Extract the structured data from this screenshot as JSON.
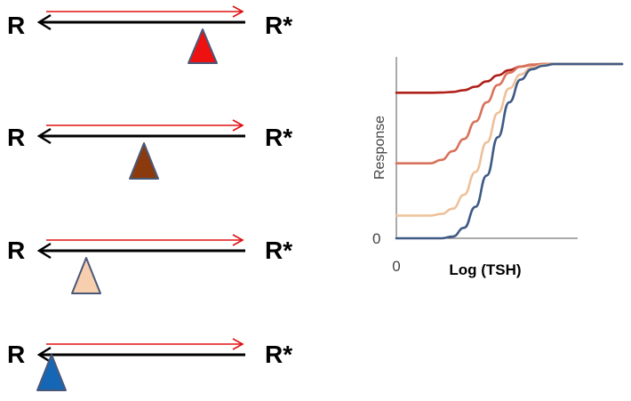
{
  "diagram": {
    "rows": [
      {
        "left": "R",
        "right": "R*",
        "fulcrum_color": "#ee1111",
        "fulcrum_position": 0.8
      },
      {
        "left": "R",
        "right": "R*",
        "fulcrum_color": "#8b3a0e",
        "fulcrum_position": 0.5
      },
      {
        "left": "R",
        "right": "R*",
        "fulcrum_color": "#f7cfae",
        "fulcrum_position": 0.2
      },
      {
        "left": "R",
        "right": "R*",
        "fulcrum_color": "#1566b4",
        "fulcrum_position": 0.02
      }
    ],
    "colors": {
      "forward_arrow": "#e01010",
      "back_arrow": "#000000",
      "fulcrum_outline": "#4a5878"
    }
  },
  "chart_data": {
    "type": "line",
    "xlabel": "Log (TSH)",
    "ylabel": "Response",
    "x_tick": "0",
    "y_tick": "0",
    "x": [
      0,
      0.5,
      1,
      1.5,
      2,
      2.5,
      3,
      3.5,
      4,
      4.5,
      5,
      5.5,
      6,
      6.5,
      7,
      7.5,
      8,
      8.5,
      9,
      9.5,
      10
    ],
    "series": [
      {
        "color": "#b0201a",
        "values": [
          0.835,
          0.835,
          0.835,
          0.835,
          0.836,
          0.84,
          0.85,
          0.87,
          0.9,
          0.935,
          0.965,
          0.985,
          0.995,
          1,
          1,
          1,
          1,
          1,
          1,
          1,
          1
        ]
      },
      {
        "color": "#d9725a",
        "values": [
          0.43,
          0.43,
          0.43,
          0.43,
          0.45,
          0.5,
          0.57,
          0.67,
          0.78,
          0.88,
          0.95,
          0.985,
          0.997,
          1,
          1,
          1,
          1,
          1,
          1,
          1,
          1
        ]
      },
      {
        "color": "#eec19a",
        "values": [
          0.13,
          0.13,
          0.13,
          0.13,
          0.14,
          0.17,
          0.25,
          0.38,
          0.55,
          0.72,
          0.86,
          0.94,
          0.98,
          0.995,
          1,
          1,
          1,
          1,
          1,
          1,
          1
        ]
      },
      {
        "color": "#3f5a85",
        "values": [
          0,
          0,
          0,
          0,
          0,
          0.01,
          0.06,
          0.18,
          0.36,
          0.58,
          0.78,
          0.91,
          0.97,
          0.99,
          1,
          1,
          1,
          1,
          1,
          1,
          1
        ]
      }
    ],
    "xlim": [
      0,
      10
    ],
    "ylim": [
      0,
      1
    ],
    "grid": false,
    "legend": "none"
  }
}
